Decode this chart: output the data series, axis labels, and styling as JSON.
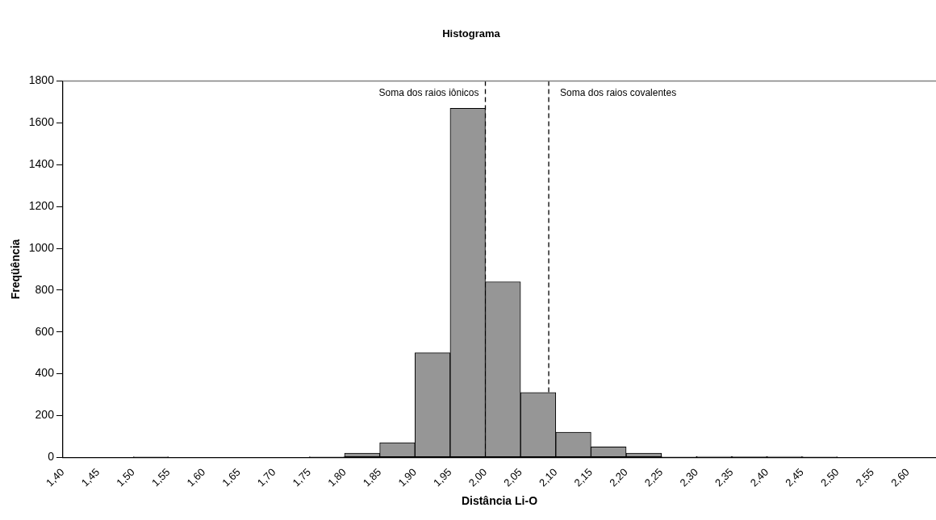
{
  "chart_data": {
    "type": "histogram",
    "title": "Histograma",
    "xlabel": "Distância Li-O",
    "ylabel": "Freqüência",
    "bins": [
      1.4,
      1.45,
      1.5,
      1.55,
      1.6,
      1.65,
      1.7,
      1.75,
      1.8,
      1.85,
      1.9,
      1.95,
      2.0,
      2.05,
      2.1,
      2.15,
      2.2,
      2.25,
      2.3,
      2.35,
      2.4,
      2.45,
      2.5,
      2.55,
      2.6
    ],
    "values": [
      0,
      0,
      3,
      0,
      0,
      0,
      null,
      3,
      20,
      70,
      500,
      1670,
      840,
      310,
      120,
      50,
      20,
      3,
      5,
      4,
      5,
      3,
      null,
      null
    ],
    "color": "#969696",
    "xlim": [
      1.4,
      2.64
    ],
    "xticks": [
      {
        "value": 1.4,
        "label": "1,40"
      },
      {
        "value": 1.45,
        "label": "1,45"
      },
      {
        "value": 1.5,
        "label": "1,50"
      },
      {
        "value": 1.55,
        "label": "1,55"
      },
      {
        "value": 1.6,
        "label": "1,60"
      },
      {
        "value": 1.65,
        "label": "1,65"
      },
      {
        "value": 1.7,
        "label": "1,70"
      },
      {
        "value": 1.75,
        "label": "1,75"
      },
      {
        "value": 1.8,
        "label": "1,80"
      },
      {
        "value": 1.85,
        "label": "1,85"
      },
      {
        "value": 1.9,
        "label": "1,90"
      },
      {
        "value": 1.95,
        "label": "1,95"
      },
      {
        "value": 2.0,
        "label": "2,00"
      },
      {
        "value": 2.05,
        "label": "2,05"
      },
      {
        "value": 2.1,
        "label": "2,10"
      },
      {
        "value": 2.15,
        "label": "2,15"
      },
      {
        "value": 2.2,
        "label": "2,20"
      },
      {
        "value": 2.25,
        "label": "2,25"
      },
      {
        "value": 2.3,
        "label": "2,30"
      },
      {
        "value": 2.35,
        "label": "2,35"
      },
      {
        "value": 2.4,
        "label": "2,40"
      },
      {
        "value": 2.45,
        "label": "2,45"
      },
      {
        "value": 2.5,
        "label": "2,50"
      },
      {
        "value": 2.55,
        "label": "2,55"
      },
      {
        "value": 2.6,
        "label": "2,60"
      }
    ],
    "ylim": [
      0,
      1800
    ],
    "yticks": [
      0,
      200,
      400,
      600,
      800,
      1000,
      1200,
      1400,
      1600,
      1800
    ],
    "ref_lines": [
      {
        "axis": "x",
        "value": 2.0,
        "label": "Soma dos raios iônicos",
        "line_style": "dashed"
      },
      {
        "axis": "x",
        "value": 2.09,
        "label": "Soma dos raios covalentes",
        "line_style": "dashed"
      }
    ],
    "grid": false,
    "legend": false
  }
}
